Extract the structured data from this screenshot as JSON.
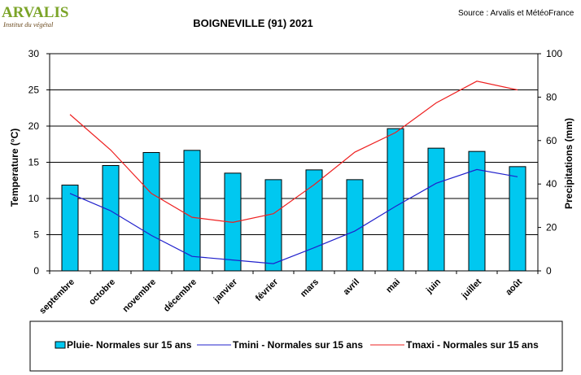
{
  "header": {
    "logo_text": "ARVALIS",
    "logo_subtitle": "Institut du végétal",
    "source": "Source : Arvalis et MétéoFrance"
  },
  "colors": {
    "bar_fill": "#00C8F0",
    "bar_stroke": "#000000",
    "tmini": "#2020CC",
    "tmaxi": "#EE2020",
    "logo_green": "#7BA428",
    "logo_brown": "#6B4A1E"
  },
  "chart_data": {
    "type": "bar+line",
    "title": "BOIGNEVILLE (91) 2021",
    "categories": [
      "septembre",
      "octobre",
      "novembre",
      "décembre",
      "janvier",
      "février",
      "mars",
      "avril",
      "mai",
      "juin",
      "juillet",
      "août"
    ],
    "y_left": {
      "label": "Temperature (°C)",
      "lim": [
        0,
        30
      ],
      "ticks": [
        0,
        5,
        10,
        15,
        20,
        25,
        30
      ]
    },
    "y_right": {
      "label": "Precipitations (mm)",
      "lim": [
        0,
        100
      ],
      "ticks": [
        0,
        20,
        40,
        60,
        80,
        100
      ]
    },
    "grid": true,
    "legend_position": "bottom",
    "series": [
      {
        "name": "Pluie- Normales sur 15 ans",
        "type": "bar",
        "axis": "right",
        "values": [
          39.5,
          48.5,
          54.5,
          55.5,
          45,
          42,
          46.5,
          42,
          65.5,
          56.5,
          55,
          48
        ]
      },
      {
        "name": "Tmini - Normales sur 15 ans",
        "type": "line",
        "axis": "left",
        "values": [
          10.7,
          8.3,
          4.9,
          2.0,
          1.5,
          1.0,
          3.2,
          5.5,
          8.9,
          12.1,
          14.0,
          13.0
        ]
      },
      {
        "name": "Tmaxi - Normales sur 15 ans",
        "type": "line",
        "axis": "left",
        "values": [
          21.6,
          16.7,
          10.7,
          7.4,
          6.7,
          7.9,
          11.9,
          16.4,
          19.1,
          23.2,
          26.2,
          25.0
        ]
      }
    ]
  }
}
